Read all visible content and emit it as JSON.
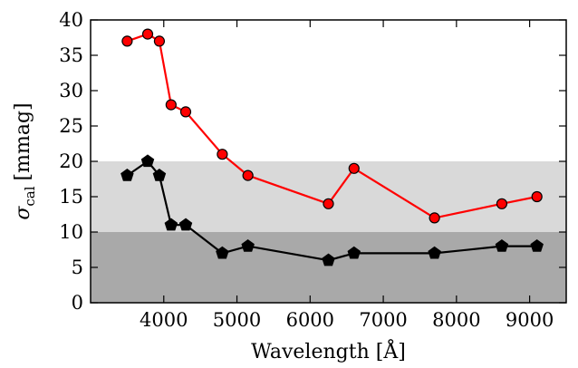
{
  "chart_data": {
    "type": "line",
    "xlabel": "Wavelength [Å]",
    "ylabel_main": "σ",
    "ylabel_sub": "cal",
    "ylabel_unit": "[mmag]",
    "xlim": [
      3000,
      9500
    ],
    "ylim": [
      0,
      40
    ],
    "xticks": [
      4000,
      5000,
      6000,
      7000,
      8000,
      9000
    ],
    "yticks": [
      0,
      5,
      10,
      15,
      20,
      25,
      30,
      35,
      40
    ],
    "bands": [
      {
        "y0": 0,
        "y1": 10,
        "color": "#a9a9a9"
      },
      {
        "y0": 10,
        "y1": 20,
        "color": "#d9d9d9"
      }
    ],
    "series": [
      {
        "color": "#ff0000",
        "marker": "circle",
        "marker_fill": "#ff0000",
        "x": [
          3500,
          3780,
          3940,
          4100,
          4300,
          4800,
          5150,
          6250,
          6600,
          7700,
          8620,
          9100
        ],
        "y": [
          37,
          38,
          37,
          28,
          27,
          21,
          18,
          14,
          19,
          12,
          14,
          15
        ]
      },
      {
        "color": "#000000",
        "marker": "pentagon",
        "marker_fill": "#000000",
        "x": [
          3500,
          3780,
          3940,
          4100,
          4300,
          4800,
          5150,
          6250,
          6600,
          7700,
          8620,
          9100
        ],
        "y": [
          18,
          20,
          18,
          11,
          11,
          7,
          8,
          6,
          7,
          7,
          8,
          8
        ]
      }
    ]
  }
}
